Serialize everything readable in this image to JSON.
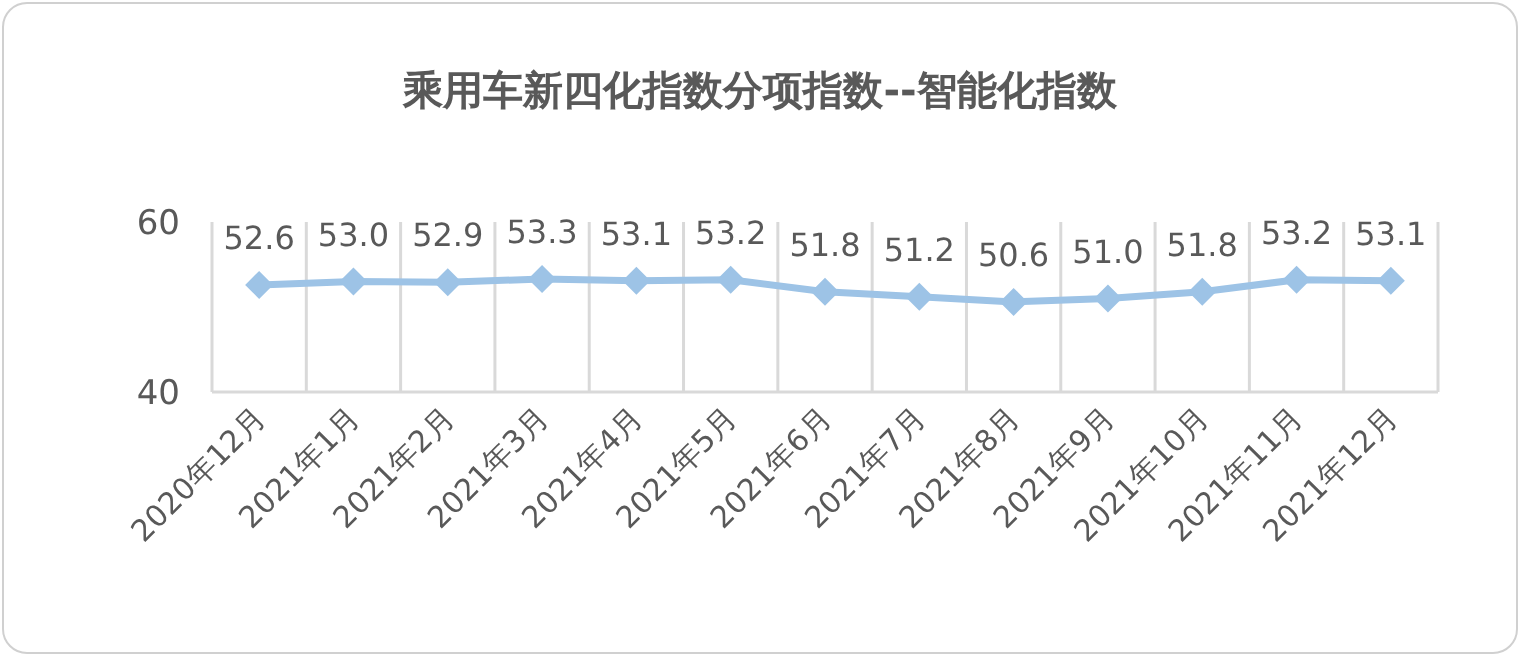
{
  "chart_data": {
    "type": "line",
    "title": "乘用车新四化指数分项指数--智能化指数",
    "categories": [
      "2020年12月",
      "2021年1月",
      "2021年2月",
      "2021年3月",
      "2021年4月",
      "2021年5月",
      "2021年6月",
      "2021年7月",
      "2021年8月",
      "2021年9月",
      "2021年10月",
      "2021年11月",
      "2021年12月"
    ],
    "values": [
      52.6,
      53.0,
      52.9,
      53.3,
      53.1,
      53.2,
      51.8,
      51.2,
      50.6,
      51.0,
      51.8,
      53.2,
      53.1
    ],
    "value_labels": [
      "52.6",
      "53.0",
      "52.9",
      "53.3",
      "53.1",
      "53.2",
      "51.8",
      "51.2",
      "50.6",
      "51.0",
      "51.8",
      "53.2",
      "53.1"
    ],
    "color": "#9dc3e6",
    "ylim": [
      40,
      60
    ],
    "yticks": [
      40,
      60
    ],
    "grid": "x",
    "marker": "diamond"
  }
}
